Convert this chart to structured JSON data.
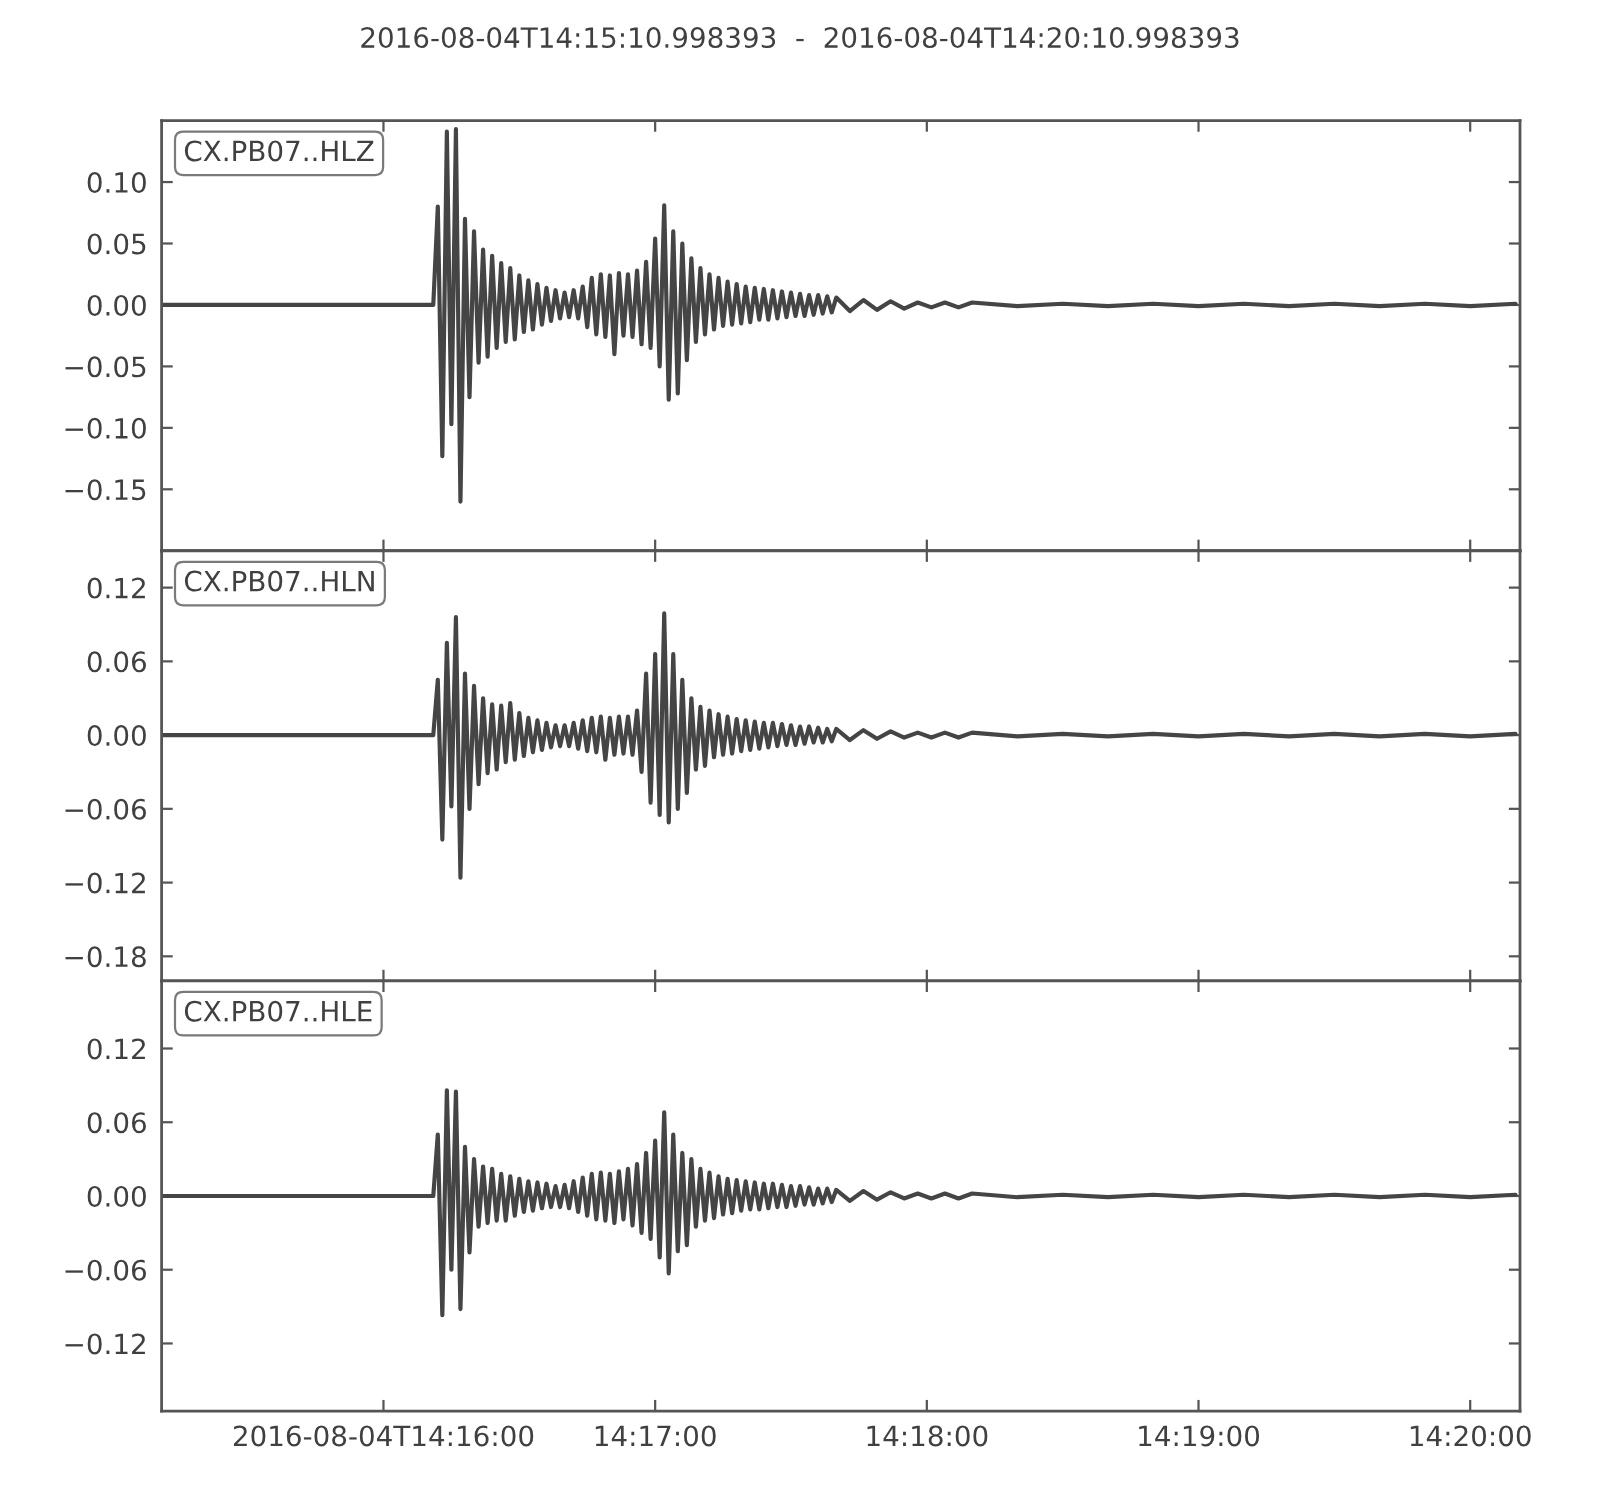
{
  "chart_data": [
    {
      "type": "line",
      "title": "2016-08-04T14:15:10.998393  -  2016-08-04T14:20:10.998393",
      "annotations": [
        "CX.PB07..HLZ"
      ],
      "color": "#454545",
      "tick_labels": "y",
      "xlim": [
        "2016-08-04T14:15:11",
        "2016-08-04T14:20:11"
      ],
      "xticks": [
        {
          "value": "2016-08-04T14:16:00",
          "label": null
        },
        {
          "value": "2016-08-04T14:17:00",
          "label": null
        },
        {
          "value": "2016-08-04T14:18:00",
          "label": null
        },
        {
          "value": "2016-08-04T14:19:00",
          "label": null
        },
        {
          "value": "2016-08-04T14:20:00",
          "label": null
        }
      ],
      "ylim": [
        -0.2,
        0.15
      ],
      "yticks": [
        {
          "value": 0.1,
          "label": "0.10"
        },
        {
          "value": 0.05,
          "label": "0.05"
        },
        {
          "value": 0,
          "label": "0.00"
        },
        {
          "value": -0.05,
          "label": "−0.05"
        },
        {
          "value": -0.1,
          "label": "−0.10"
        },
        {
          "value": -0.15,
          "label": "−0.15"
        }
      ],
      "x": [
        "2016-08-04T14:15:11",
        "2016-08-04T14:16:11",
        "2016-08-04T14:16:12",
        "2016-08-04T14:16:13",
        "2016-08-04T14:16:14",
        "2016-08-04T14:16:15",
        "2016-08-04T14:16:16",
        "2016-08-04T14:16:17",
        "2016-08-04T14:16:18",
        "2016-08-04T14:16:19",
        "2016-08-04T14:16:20",
        "2016-08-04T14:16:21",
        "2016-08-04T14:16:22",
        "2016-08-04T14:16:23",
        "2016-08-04T14:16:24",
        "2016-08-04T14:16:25",
        "2016-08-04T14:16:26",
        "2016-08-04T14:16:27",
        "2016-08-04T14:16:28",
        "2016-08-04T14:16:29",
        "2016-08-04T14:16:30",
        "2016-08-04T14:16:31",
        "2016-08-04T14:16:32",
        "2016-08-04T14:16:33",
        "2016-08-04T14:16:34",
        "2016-08-04T14:16:35",
        "2016-08-04T14:16:36",
        "2016-08-04T14:16:37",
        "2016-08-04T14:16:38",
        "2016-08-04T14:16:39",
        "2016-08-04T14:16:40",
        "2016-08-04T14:16:41",
        "2016-08-04T14:16:42",
        "2016-08-04T14:16:43",
        "2016-08-04T14:16:44",
        "2016-08-04T14:16:45",
        "2016-08-04T14:16:46",
        "2016-08-04T14:16:47",
        "2016-08-04T14:16:48",
        "2016-08-04T14:16:49",
        "2016-08-04T14:16:50",
        "2016-08-04T14:16:51",
        "2016-08-04T14:16:52",
        "2016-08-04T14:16:53",
        "2016-08-04T14:16:54",
        "2016-08-04T14:16:55",
        "2016-08-04T14:16:56",
        "2016-08-04T14:16:57",
        "2016-08-04T14:16:58",
        "2016-08-04T14:16:59",
        "2016-08-04T14:17:00",
        "2016-08-04T14:17:01",
        "2016-08-04T14:17:02",
        "2016-08-04T14:17:03",
        "2016-08-04T14:17:04",
        "2016-08-04T14:17:05",
        "2016-08-04T14:17:06",
        "2016-08-04T14:17:07",
        "2016-08-04T14:17:08",
        "2016-08-04T14:17:09",
        "2016-08-04T14:17:10",
        "2016-08-04T14:17:11",
        "2016-08-04T14:17:12",
        "2016-08-04T14:17:13",
        "2016-08-04T14:17:14",
        "2016-08-04T14:17:15",
        "2016-08-04T14:17:16",
        "2016-08-04T14:17:17",
        "2016-08-04T14:17:18",
        "2016-08-04T14:17:19",
        "2016-08-04T14:17:20",
        "2016-08-04T14:17:21",
        "2016-08-04T14:17:22",
        "2016-08-04T14:17:23",
        "2016-08-04T14:17:24",
        "2016-08-04T14:17:25",
        "2016-08-04T14:17:26",
        "2016-08-04T14:17:27",
        "2016-08-04T14:17:28",
        "2016-08-04T14:17:29",
        "2016-08-04T14:17:30",
        "2016-08-04T14:17:31",
        "2016-08-04T14:17:32",
        "2016-08-04T14:17:33",
        "2016-08-04T14:17:34",
        "2016-08-04T14:17:35",
        "2016-08-04T14:17:36",
        "2016-08-04T14:17:37",
        "2016-08-04T14:17:38",
        "2016-08-04T14:17:39",
        "2016-08-04T14:17:40",
        "2016-08-04T14:17:43",
        "2016-08-04T14:17:46",
        "2016-08-04T14:17:49",
        "2016-08-04T14:17:52",
        "2016-08-04T14:17:55",
        "2016-08-04T14:17:58",
        "2016-08-04T14:18:01",
        "2016-08-04T14:18:04",
        "2016-08-04T14:18:07",
        "2016-08-04T14:18:10",
        "2016-08-04T14:18:20",
        "2016-08-04T14:18:30",
        "2016-08-04T14:18:40",
        "2016-08-04T14:18:50",
        "2016-08-04T14:19:00",
        "2016-08-04T14:19:10",
        "2016-08-04T14:19:20",
        "2016-08-04T14:19:30",
        "2016-08-04T14:19:40",
        "2016-08-04T14:19:50",
        "2016-08-04T14:20:00",
        "2016-08-04T14:20:10"
      ],
      "values": [
        0,
        0,
        0.08,
        -0.123,
        0.141,
        -0.097,
        0.143,
        -0.16,
        0.07,
        -0.075,
        0.06,
        -0.047,
        0.045,
        -0.042,
        0.04,
        -0.035,
        0.034,
        -0.03,
        0.03,
        -0.028,
        0.024,
        -0.022,
        0.02,
        -0.02,
        0.017,
        -0.016,
        0.014,
        -0.013,
        0.012,
        -0.011,
        0.01,
        -0.01,
        0.012,
        -0.011,
        0.015,
        -0.018,
        0.022,
        -0.024,
        0.025,
        -0.026,
        0.024,
        -0.04,
        0.026,
        -0.025,
        0.025,
        -0.026,
        0.028,
        -0.032,
        0.035,
        -0.035,
        0.054,
        -0.05,
        0.081,
        -0.077,
        0.06,
        -0.072,
        0.05,
        -0.045,
        0.038,
        -0.03,
        0.03,
        -0.024,
        0.025,
        -0.02,
        0.022,
        -0.017,
        0.019,
        -0.016,
        0.017,
        -0.015,
        0.015,
        -0.014,
        0.014,
        -0.012,
        0.013,
        -0.012,
        0.012,
        -0.011,
        0.011,
        -0.01,
        0.01,
        -0.009,
        0.009,
        -0.009,
        0.008,
        -0.008,
        0.008,
        -0.007,
        0.007,
        -0.006,
        0.006,
        -0.005,
        0.004,
        -0.004,
        0.003,
        -0.003,
        0.002,
        -0.002,
        0.002,
        -0.002,
        0.002,
        -0.001,
        0.001,
        -0.001,
        0.001,
        -0.001,
        0.001,
        -0.001,
        0.001,
        -0.001,
        0.001,
        -0.001,
        0.001
      ]
    },
    {
      "type": "line",
      "annotations": [
        "CX.PB07..HLN"
      ],
      "color": "#454545",
      "tick_labels": "y",
      "xlim": [
        "2016-08-04T14:15:11",
        "2016-08-04T14:20:11"
      ],
      "xticks": [
        {
          "value": "2016-08-04T14:16:00",
          "label": null
        },
        {
          "value": "2016-08-04T14:17:00",
          "label": null
        },
        {
          "value": "2016-08-04T14:18:00",
          "label": null
        },
        {
          "value": "2016-08-04T14:19:00",
          "label": null
        },
        {
          "value": "2016-08-04T14:20:00",
          "label": null
        }
      ],
      "ylim": [
        -0.2,
        0.15
      ],
      "yticks": [
        {
          "value": 0.12,
          "label": "0.12"
        },
        {
          "value": 0.06,
          "label": "0.06"
        },
        {
          "value": 0,
          "label": "0.00"
        },
        {
          "value": -0.06,
          "label": "−0.06"
        },
        {
          "value": -0.12,
          "label": "−0.12"
        },
        {
          "value": -0.18,
          "label": "−0.18"
        }
      ],
      "x": [
        "2016-08-04T14:15:11",
        "2016-08-04T14:16:11",
        "2016-08-04T14:16:12",
        "2016-08-04T14:16:13",
        "2016-08-04T14:16:14",
        "2016-08-04T14:16:15",
        "2016-08-04T14:16:16",
        "2016-08-04T14:16:17",
        "2016-08-04T14:16:18",
        "2016-08-04T14:16:19",
        "2016-08-04T14:16:20",
        "2016-08-04T14:16:21",
        "2016-08-04T14:16:22",
        "2016-08-04T14:16:23",
        "2016-08-04T14:16:24",
        "2016-08-04T14:16:25",
        "2016-08-04T14:16:26",
        "2016-08-04T14:16:27",
        "2016-08-04T14:16:28",
        "2016-08-04T14:16:29",
        "2016-08-04T14:16:30",
        "2016-08-04T14:16:31",
        "2016-08-04T14:16:32",
        "2016-08-04T14:16:33",
        "2016-08-04T14:16:34",
        "2016-08-04T14:16:35",
        "2016-08-04T14:16:36",
        "2016-08-04T14:16:37",
        "2016-08-04T14:16:38",
        "2016-08-04T14:16:39",
        "2016-08-04T14:16:40",
        "2016-08-04T14:16:41",
        "2016-08-04T14:16:42",
        "2016-08-04T14:16:43",
        "2016-08-04T14:16:44",
        "2016-08-04T14:16:45",
        "2016-08-04T14:16:46",
        "2016-08-04T14:16:47",
        "2016-08-04T14:16:48",
        "2016-08-04T14:16:49",
        "2016-08-04T14:16:50",
        "2016-08-04T14:16:51",
        "2016-08-04T14:16:52",
        "2016-08-04T14:16:53",
        "2016-08-04T14:16:54",
        "2016-08-04T14:16:55",
        "2016-08-04T14:16:56",
        "2016-08-04T14:16:57",
        "2016-08-04T14:16:58",
        "2016-08-04T14:16:59",
        "2016-08-04T14:17:00",
        "2016-08-04T14:17:01",
        "2016-08-04T14:17:02",
        "2016-08-04T14:17:03",
        "2016-08-04T14:17:04",
        "2016-08-04T14:17:05",
        "2016-08-04T14:17:06",
        "2016-08-04T14:17:07",
        "2016-08-04T14:17:08",
        "2016-08-04T14:17:09",
        "2016-08-04T14:17:10",
        "2016-08-04T14:17:11",
        "2016-08-04T14:17:12",
        "2016-08-04T14:17:13",
        "2016-08-04T14:17:14",
        "2016-08-04T14:17:15",
        "2016-08-04T14:17:16",
        "2016-08-04T14:17:17",
        "2016-08-04T14:17:18",
        "2016-08-04T14:17:19",
        "2016-08-04T14:17:20",
        "2016-08-04T14:17:21",
        "2016-08-04T14:17:22",
        "2016-08-04T14:17:23",
        "2016-08-04T14:17:24",
        "2016-08-04T14:17:25",
        "2016-08-04T14:17:26",
        "2016-08-04T14:17:27",
        "2016-08-04T14:17:28",
        "2016-08-04T14:17:29",
        "2016-08-04T14:17:30",
        "2016-08-04T14:17:31",
        "2016-08-04T14:17:32",
        "2016-08-04T14:17:33",
        "2016-08-04T14:17:34",
        "2016-08-04T14:17:35",
        "2016-08-04T14:17:36",
        "2016-08-04T14:17:37",
        "2016-08-04T14:17:38",
        "2016-08-04T14:17:39",
        "2016-08-04T14:17:40",
        "2016-08-04T14:17:43",
        "2016-08-04T14:17:46",
        "2016-08-04T14:17:49",
        "2016-08-04T14:17:52",
        "2016-08-04T14:17:55",
        "2016-08-04T14:17:58",
        "2016-08-04T14:18:01",
        "2016-08-04T14:18:04",
        "2016-08-04T14:18:07",
        "2016-08-04T14:18:10",
        "2016-08-04T14:18:20",
        "2016-08-04T14:18:30",
        "2016-08-04T14:18:40",
        "2016-08-04T14:18:50",
        "2016-08-04T14:19:00",
        "2016-08-04T14:19:10",
        "2016-08-04T14:19:20",
        "2016-08-04T14:19:30",
        "2016-08-04T14:19:40",
        "2016-08-04T14:19:50",
        "2016-08-04T14:20:00",
        "2016-08-04T14:20:10"
      ],
      "values": [
        0,
        0,
        0.045,
        -0.085,
        0.075,
        -0.058,
        0.096,
        -0.116,
        0.05,
        -0.06,
        0.04,
        -0.04,
        0.03,
        -0.031,
        0.025,
        -0.028,
        0.024,
        -0.022,
        0.026,
        -0.02,
        0.018,
        -0.017,
        0.014,
        -0.014,
        0.012,
        -0.012,
        0.01,
        -0.01,
        0.008,
        -0.009,
        0.008,
        -0.009,
        0.01,
        -0.011,
        0.012,
        -0.013,
        0.014,
        -0.014,
        0.015,
        -0.02,
        0.014,
        -0.016,
        0.015,
        -0.015,
        0.015,
        -0.016,
        0.02,
        -0.03,
        0.05,
        -0.055,
        0.066,
        -0.065,
        0.099,
        -0.071,
        0.066,
        -0.06,
        0.045,
        -0.047,
        0.03,
        -0.028,
        0.023,
        -0.025,
        0.02,
        -0.018,
        0.017,
        -0.016,
        0.015,
        -0.015,
        0.013,
        -0.013,
        0.012,
        -0.012,
        0.011,
        -0.011,
        0.01,
        -0.01,
        0.01,
        -0.009,
        0.009,
        -0.008,
        0.008,
        -0.008,
        0.007,
        -0.007,
        0.007,
        -0.006,
        0.006,
        -0.006,
        0.005,
        -0.005,
        0.005,
        -0.004,
        0.004,
        -0.003,
        0.003,
        -0.002,
        0.002,
        -0.002,
        0.002,
        -0.002,
        0.002,
        -0.001,
        0.001,
        -0.001,
        0.001,
        -0.001,
        0.001,
        -0.001,
        0.001,
        -0.001,
        0.001,
        -0.001,
        0.001
      ]
    },
    {
      "type": "line",
      "annotations": [
        "CX.PB07..HLE"
      ],
      "color": "#454545",
      "xlim": [
        "2016-08-04T14:15:11",
        "2016-08-04T14:20:11"
      ],
      "xticks": [
        "2016-08-04T14:16:00",
        {
          "value": "2016-08-04T14:17:00",
          "label": "14:17:00"
        },
        {
          "value": "2016-08-04T14:18:00",
          "label": "14:18:00"
        },
        {
          "value": "2016-08-04T14:19:00",
          "label": "14:19:00"
        },
        {
          "value": "2016-08-04T14:20:00",
          "label": "14:20:00"
        }
      ],
      "ylim": [
        -0.175,
        0.175
      ],
      "yticks": [
        {
          "value": 0.12,
          "label": "0.12"
        },
        {
          "value": 0.06,
          "label": "0.06"
        },
        {
          "value": 0,
          "label": "0.00"
        },
        {
          "value": -0.06,
          "label": "−0.06"
        },
        {
          "value": -0.12,
          "label": "−0.12"
        }
      ],
      "x": [
        "2016-08-04T14:15:11",
        "2016-08-04T14:16:11",
        "2016-08-04T14:16:12",
        "2016-08-04T14:16:13",
        "2016-08-04T14:16:14",
        "2016-08-04T14:16:15",
        "2016-08-04T14:16:16",
        "2016-08-04T14:16:17",
        "2016-08-04T14:16:18",
        "2016-08-04T14:16:19",
        "2016-08-04T14:16:20",
        "2016-08-04T14:16:21",
        "2016-08-04T14:16:22",
        "2016-08-04T14:16:23",
        "2016-08-04T14:16:24",
        "2016-08-04T14:16:25",
        "2016-08-04T14:16:26",
        "2016-08-04T14:16:27",
        "2016-08-04T14:16:28",
        "2016-08-04T14:16:29",
        "2016-08-04T14:16:30",
        "2016-08-04T14:16:31",
        "2016-08-04T14:16:32",
        "2016-08-04T14:16:33",
        "2016-08-04T14:16:34",
        "2016-08-04T14:16:35",
        "2016-08-04T14:16:36",
        "2016-08-04T14:16:37",
        "2016-08-04T14:16:38",
        "2016-08-04T14:16:39",
        "2016-08-04T14:16:40",
        "2016-08-04T14:16:41",
        "2016-08-04T14:16:42",
        "2016-08-04T14:16:43",
        "2016-08-04T14:16:44",
        "2016-08-04T14:16:45",
        "2016-08-04T14:16:46",
        "2016-08-04T14:16:47",
        "2016-08-04T14:16:48",
        "2016-08-04T14:16:49",
        "2016-08-04T14:16:50",
        "2016-08-04T14:16:51",
        "2016-08-04T14:16:52",
        "2016-08-04T14:16:53",
        "2016-08-04T14:16:54",
        "2016-08-04T14:16:55",
        "2016-08-04T14:16:56",
        "2016-08-04T14:16:57",
        "2016-08-04T14:16:58",
        "2016-08-04T14:16:59",
        "2016-08-04T14:17:00",
        "2016-08-04T14:17:01",
        "2016-08-04T14:17:02",
        "2016-08-04T14:17:03",
        "2016-08-04T14:17:04",
        "2016-08-04T14:17:05",
        "2016-08-04T14:17:06",
        "2016-08-04T14:17:07",
        "2016-08-04T14:17:08",
        "2016-08-04T14:17:09",
        "2016-08-04T14:17:10",
        "2016-08-04T14:17:11",
        "2016-08-04T14:17:12",
        "2016-08-04T14:17:13",
        "2016-08-04T14:17:14",
        "2016-08-04T14:17:15",
        "2016-08-04T14:17:16",
        "2016-08-04T14:17:17",
        "2016-08-04T14:17:18",
        "2016-08-04T14:17:19",
        "2016-08-04T14:17:20",
        "2016-08-04T14:17:21",
        "2016-08-04T14:17:22",
        "2016-08-04T14:17:23",
        "2016-08-04T14:17:24",
        "2016-08-04T14:17:25",
        "2016-08-04T14:17:26",
        "2016-08-04T14:17:27",
        "2016-08-04T14:17:28",
        "2016-08-04T14:17:29",
        "2016-08-04T14:17:30",
        "2016-08-04T14:17:31",
        "2016-08-04T14:17:32",
        "2016-08-04T14:17:33",
        "2016-08-04T14:17:34",
        "2016-08-04T14:17:35",
        "2016-08-04T14:17:36",
        "2016-08-04T14:17:37",
        "2016-08-04T14:17:38",
        "2016-08-04T14:17:39",
        "2016-08-04T14:17:40",
        "2016-08-04T14:17:43",
        "2016-08-04T14:17:46",
        "2016-08-04T14:17:49",
        "2016-08-04T14:17:52",
        "2016-08-04T14:17:55",
        "2016-08-04T14:17:58",
        "2016-08-04T14:18:01",
        "2016-08-04T14:18:04",
        "2016-08-04T14:18:07",
        "2016-08-04T14:18:10",
        "2016-08-04T14:18:20",
        "2016-08-04T14:18:30",
        "2016-08-04T14:18:40",
        "2016-08-04T14:18:50",
        "2016-08-04T14:19:00",
        "2016-08-04T14:19:10",
        "2016-08-04T14:19:20",
        "2016-08-04T14:19:30",
        "2016-08-04T14:19:40",
        "2016-08-04T14:19:50",
        "2016-08-04T14:20:00",
        "2016-08-04T14:20:10"
      ],
      "values": [
        0,
        0,
        0.05,
        -0.097,
        0.086,
        -0.06,
        0.085,
        -0.092,
        0.04,
        -0.046,
        0.03,
        -0.025,
        0.024,
        -0.022,
        0.022,
        -0.02,
        0.018,
        -0.02,
        0.016,
        -0.016,
        0.014,
        -0.013,
        0.012,
        -0.012,
        0.011,
        -0.01,
        0.01,
        -0.009,
        0.008,
        -0.009,
        0.009,
        -0.01,
        0.012,
        -0.013,
        0.015,
        -0.016,
        0.018,
        -0.019,
        0.019,
        -0.02,
        0.018,
        -0.022,
        0.02,
        -0.019,
        0.022,
        -0.024,
        0.026,
        -0.03,
        0.035,
        -0.035,
        0.045,
        -0.05,
        0.068,
        -0.063,
        0.05,
        -0.045,
        0.035,
        -0.04,
        0.03,
        -0.025,
        0.022,
        -0.02,
        0.019,
        -0.018,
        0.016,
        -0.015,
        0.014,
        -0.014,
        0.013,
        -0.012,
        0.012,
        -0.011,
        0.011,
        -0.011,
        0.01,
        -0.01,
        0.01,
        -0.009,
        0.009,
        -0.009,
        0.008,
        -0.008,
        0.008,
        -0.007,
        0.007,
        -0.007,
        0.006,
        -0.006,
        0.006,
        -0.005,
        0.005,
        -0.004,
        0.004,
        -0.003,
        0.003,
        -0.002,
        0.002,
        -0.002,
        0.002,
        -0.002,
        0.002,
        -0.001,
        0.001,
        -0.001,
        0.001,
        -0.001,
        0.001,
        -0.001,
        0.001,
        -0.001,
        0.001,
        -0.001,
        0.001
      ]
    }
  ]
}
